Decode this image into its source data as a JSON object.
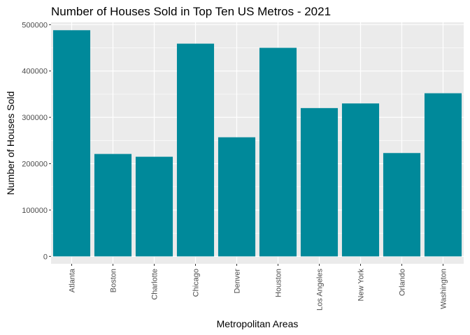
{
  "chart_data": {
    "type": "bar",
    "title": "Number of Houses Sold in Top Ten US Metros - 2021",
    "xlabel": "Metropolitan Areas",
    "ylabel": "Number of Houses Sold",
    "categories": [
      "Atlanta",
      "Boston",
      "Charlotte",
      "Chicago",
      "Denver",
      "Houston",
      "Los Angeles",
      "New York",
      "Orlando",
      "Washington"
    ],
    "values": [
      488000,
      221000,
      215000,
      459000,
      257000,
      450000,
      320000,
      330000,
      223000,
      352000
    ],
    "ylim": [
      -16000,
      505000
    ],
    "yticks": [
      0,
      100000,
      200000,
      300000,
      400000,
      500000
    ],
    "ytick_labels": [
      "0",
      "100000",
      "200000",
      "300000",
      "400000",
      "500000"
    ],
    "bar_color": "#00899a",
    "panel_background": "#ebebeb",
    "grid_color": "#ffffff",
    "grid": true
  }
}
